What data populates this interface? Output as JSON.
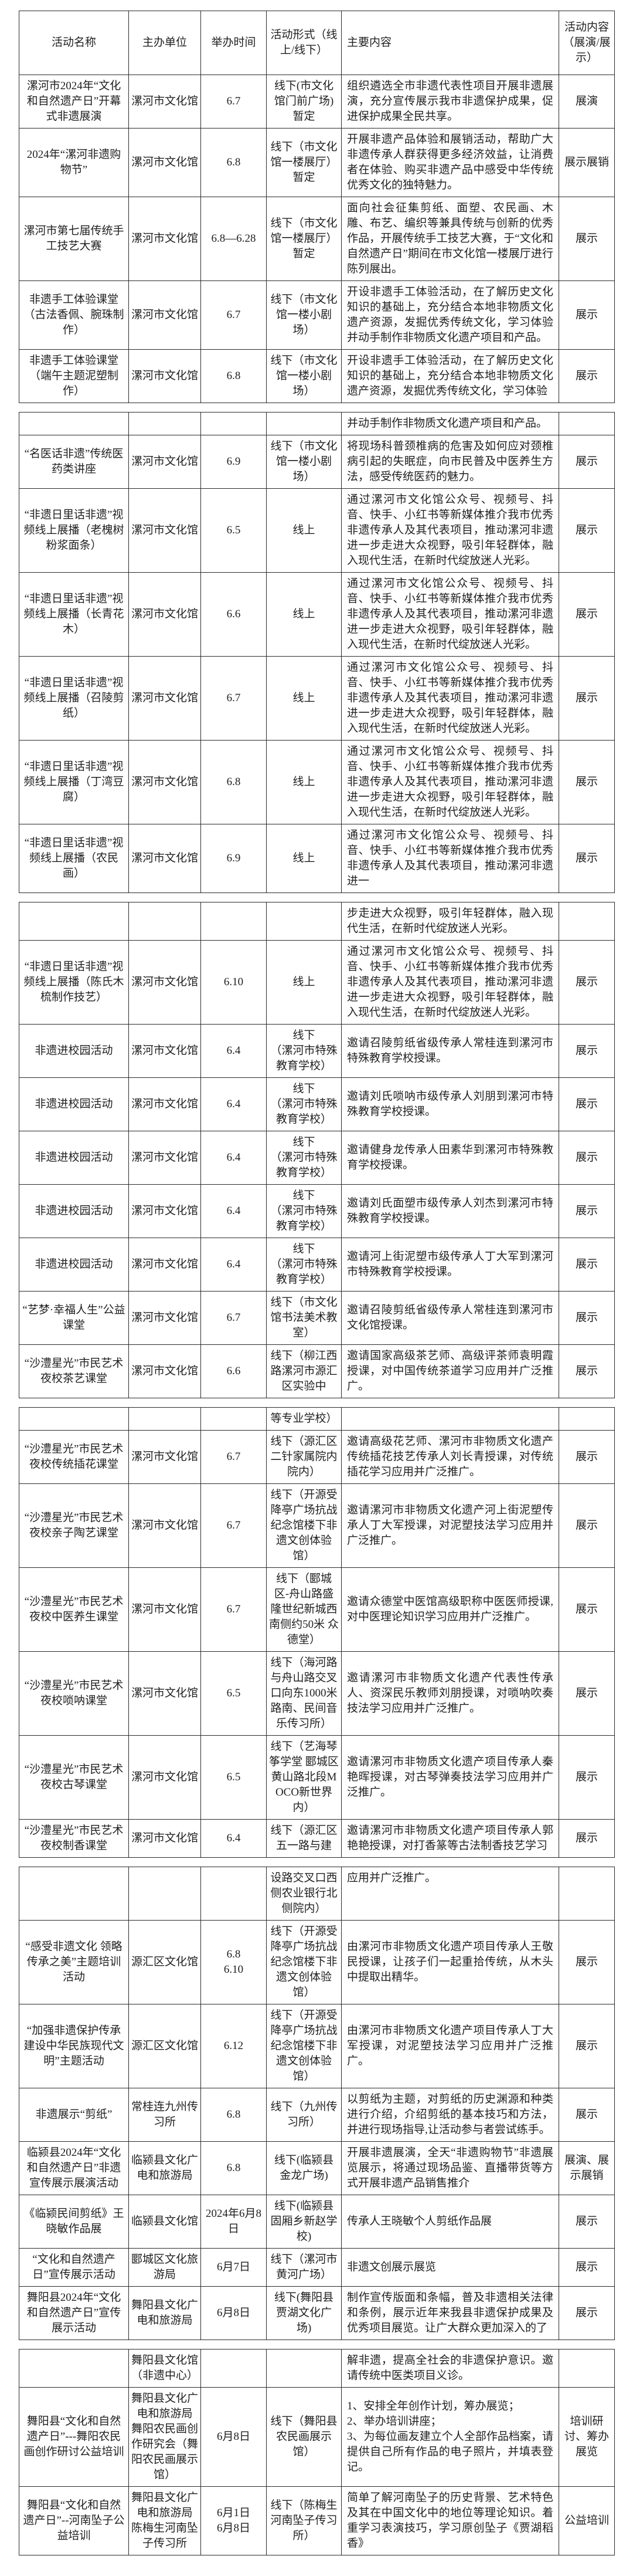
{
  "document": {
    "background_color": "#ffffff",
    "text_color": "#1f1f1f",
    "border_color": "#2b2b2b",
    "description": "漯河市2024年文化和自然遗产日非遗宣传展示活动安排表"
  },
  "header": {
    "columns": [
      "活动名称",
      "主办单位",
      "举办时间",
      "活动形式（线上/线下）",
      "主要内容",
      "活动内容（展演/展示）"
    ]
  },
  "pages": [
    {
      "rows": [
        {
          "continuation": false,
          "name": "漯河市2024年“文化和自然遗产日”开幕式非遗展演",
          "org": "漯河市文化馆",
          "time": "6.7",
          "format": "线下(市文化馆门前广场)暂定",
          "content": "组织遴选全市非遗代表性项目开展非遗展演，充分宣传展示我市非遗保护成果，促进保护成果全民共享。",
          "type": "展演"
        },
        {
          "continuation": false,
          "name": "2024年“漯河非遗购物节”",
          "org": "漯河市文化馆",
          "time": "6.8",
          "format": "线下（市文化馆一楼展厅）暂定",
          "content": "开展非遗产品体验和展销活动，帮助广大非遗传承人群获得更多经济效益，让消费者在体验、购买非遗产品中感受中华传统优秀文化的独特魅力。",
          "type": "展示展销"
        },
        {
          "continuation": false,
          "name": "漯河市第七届传统手工技艺大赛",
          "org": "漯河市文化馆",
          "time": "6.8—6.28",
          "format": "线下（市文化馆一楼展厅）暂定",
          "content": "面向社会征集剪纸、面塑、农民画、木雕、布艺、编织等兼具传统与创新的优秀作品，开展传统手工技艺大赛，于“文化和自然遗产日”期间在市文化馆一楼展厅进行陈列展出。",
          "type": "展示"
        },
        {
          "continuation": false,
          "name": "非遗手工体验课堂（古法香佩、腕珠制作）",
          "org": "漯河市文化馆",
          "time": "6.7",
          "format": "线下（市文化馆一楼小剧场）",
          "content": "开设非遗手工体验活动，在了解历史文化知识的基础上，充分结合本地非物质文化遗产资源，发掘优秀传统文化，学习体验并动手制作非物质文化遗产项目和产品。",
          "type": "展示"
        },
        {
          "continuation": false,
          "name": "非遗手工体验课堂（端午主题泥塑制作）",
          "org": "漯河市文化馆",
          "time": "6.8",
          "format": "线下（市文化馆一楼小剧场）",
          "content": "开设非遗手工体验活动，在了解历史文化知识的基础上，充分结合本地非物质文化遗产资源，发掘优秀传统文化，学习体验",
          "type": "展示"
        }
      ]
    },
    {
      "rows": [
        {
          "continuation": true,
          "name": "",
          "org": "",
          "time": "",
          "format": "",
          "content": "并动手制作非物质文化遗产项目和产品。",
          "type": ""
        },
        {
          "continuation": false,
          "name": "“名医话非遗”传统医药类讲座",
          "org": "漯河市文化馆",
          "time": "6.9",
          "format": "线下（市文化馆一楼小剧场）",
          "content": "将现场科普颈椎病的危害及如何应对颈椎病引起的失眠症，向市民普及中医养生方法，感受传统医药的魅力。",
          "type": "展示"
        },
        {
          "continuation": false,
          "name": "“非遗日里话非遗”视频线上展播（老槐树粉浆面条）",
          "org": "漯河市文化馆",
          "time": "6.5",
          "format": "线上",
          "content": "通过漯河市文化馆公众号、视频号、抖音、快手、小红书等新媒体推介我市优秀非遗传承人及其代表项目，推动漯河非遗进一步走进大众视野，吸引年轻群体，融入现代生活，在新时代绽放迷人光彩。",
          "type": "展示"
        },
        {
          "continuation": false,
          "name": "“非遗日里话非遗”视频线上展播（长青花木）",
          "org": "漯河市文化馆",
          "time": "6.6",
          "format": "线上",
          "content": "通过漯河市文化馆公众号、视频号、抖音、快手、小红书等新媒体推介我市优秀非遗传承人及其代表项目，推动漯河非遗进一步走进大众视野，吸引年轻群体，融入现代生活，在新时代绽放迷人光彩。",
          "type": "展示"
        },
        {
          "continuation": false,
          "name": "“非遗日里话非遗”视频线上展播（召陵剪纸）",
          "org": "漯河市文化馆",
          "time": "6.7",
          "format": "线上",
          "content": "通过漯河市文化馆公众号、视频号、抖音、快手、小红书等新媒体推介我市优秀非遗传承人及其代表项目，推动漯河非遗进一步走进大众视野，吸引年轻群体，融入现代生活，在新时代绽放迷人光彩。",
          "type": "展示"
        },
        {
          "continuation": false,
          "name": "“非遗日里话非遗”视频线上展播（丁湾豆腐）",
          "org": "漯河市文化馆",
          "time": "6.8",
          "format": "线上",
          "content": "通过漯河市文化馆公众号、视频号、抖音、快手、小红书等新媒体推介我市优秀非遗传承人及其代表项目，推动漯河非遗进一步走进大众视野，吸引年轻群体，融入现代生活，在新时代绽放迷人光彩。",
          "type": "展示"
        },
        {
          "continuation": false,
          "name": "“非遗日里话非遗”视频线上展播（农民画）",
          "org": "漯河市文化馆",
          "time": "6.9",
          "format": "线上",
          "content": "通过漯河市文化馆公众号、视频号、抖音、快手、小红书等新媒体推介我市优秀非遗传承人及其代表项目，推动漯河非遗进一",
          "type": "展示"
        }
      ]
    },
    {
      "rows": [
        {
          "continuation": true,
          "name": "",
          "org": "",
          "time": "",
          "format": "",
          "content": "步走进大众视野，吸引年轻群体，融入现代生活，在新时代绽放迷人光彩。",
          "type": ""
        },
        {
          "continuation": false,
          "name": "“非遗日里话非遗”视频线上展播（陈氏木梳制作技艺）",
          "org": "漯河市文化馆",
          "time": "6.10",
          "format": "线上",
          "content": "通过漯河市文化馆公众号、视频号、抖音、快手、小红书等新媒体推介我市优秀非遗传承人及其代表项目，推动漯河非遗进一步走进大众视野，吸引年轻群体，融入现代生活，在新时代绽放迷人光彩。",
          "type": "展示"
        },
        {
          "continuation": false,
          "name": "非遗进校园活动",
          "org": "漯河市文化馆",
          "time": "6.4",
          "format": "线下\n（漯河市特殊教育学校）",
          "content": "邀请召陵剪纸省级传承人常桂连到漯河市特殊教育学校授课。",
          "type": "展示"
        },
        {
          "continuation": false,
          "name": "非遗进校园活动",
          "org": "漯河市文化馆",
          "time": "6.4",
          "format": "线下\n（漯河市特殊教育学校）",
          "content": "邀请刘氏唢呐市级传承人刘朋到漯河市特殊教育学校授课。",
          "type": "展示"
        },
        {
          "continuation": false,
          "name": "非遗进校园活动",
          "org": "漯河市文化馆",
          "time": "6.4",
          "format": "线下\n（漯河市特殊教育学校）",
          "content": "邀请健身龙传承人田素华到漯河市特殊教育学校授课。",
          "type": "展示"
        },
        {
          "continuation": false,
          "name": "非遗进校园活动",
          "org": "漯河市文化馆",
          "time": "6.4",
          "format": "线下\n（漯河市特殊教育学校）",
          "content": "邀请刘氏面塑市级传承人刘杰到漯河市特殊教育学校授课。",
          "type": "展示"
        },
        {
          "continuation": false,
          "name": "非遗进校园活动",
          "org": "漯河市文化馆",
          "time": "6.4",
          "format": "线下\n（漯河市特殊教育学校）",
          "content": "邀请河上街泥塑市级传承人丁大军到漯河市特殊教育学校授课。",
          "type": "展示"
        },
        {
          "continuation": false,
          "name": "“艺梦·幸福人生”公益课堂",
          "org": "漯河市文化馆",
          "time": "6.7",
          "format": "线下（市文化馆书法美术教室）",
          "content": "邀请召陵剪纸省级传承人常桂连到漯河市文化馆授课。",
          "type": "展示"
        },
        {
          "continuation": false,
          "name": "“沙澧星光”市民艺术夜校茶艺课堂",
          "org": "漯河市文化馆",
          "time": "6.6",
          "format": "线下（柳江西路漯河市源汇区实验中",
          "content": "邀请国家高级茶艺师、高级评茶师袁明霞授课，对中国传统茶道学习应用并广泛推广。",
          "type": "展示"
        }
      ]
    },
    {
      "rows": [
        {
          "continuation": true,
          "name": "",
          "org": "",
          "time": "",
          "format": "等专业学校）",
          "content": "",
          "type": ""
        },
        {
          "continuation": false,
          "name": "“沙澧星光”市民艺术夜校传统插花课堂",
          "org": "漯河市文化馆",
          "time": "6.7",
          "format": "线下（源汇区二针家属院内院内）",
          "content": "邀请高级花艺师、漯河市非物质文化遗产传统插花技艺传承人刘长青授课，对传统插花学习应用并广泛推广。",
          "type": "展示"
        },
        {
          "continuation": false,
          "name": "“沙澧星光”市民艺术夜校亲子陶艺课堂",
          "org": "漯河市文化馆",
          "time": "6.7",
          "format": "线下（开源受降亭广场抗战纪念馆楼下非遗文创体验馆）",
          "content": "邀请漯河市非物质文化遗产河上街泥塑传承人丁大军授课，对泥塑技法学习应用并广泛推广。",
          "type": "展示"
        },
        {
          "continuation": false,
          "name": "“沙澧星光”市民艺术夜校中医养生课堂",
          "org": "漯河市文化馆",
          "time": "6.7",
          "format": "线下（郾城区-舟山路盛隆世纪新城西南侧约50米 众德堂）",
          "content": "邀请众德堂中医馆高级职称中医医师授课,对中医理论知识学习应用并广泛推广。",
          "type": "展示"
        },
        {
          "continuation": false,
          "name": "“沙澧星光”市民艺术夜校唢呐课堂",
          "org": "漯河市文化馆",
          "time": "6.5",
          "format": "线下（海河路与舟山路交叉口向东1000米路南、民间音乐传习所）",
          "content": "邀请漯河市非物质文化遗产代表性传承人、资深民乐教师刘朋授课，对唢呐吹奏技法学习应用并广泛推广。",
          "type": "展示"
        },
        {
          "continuation": false,
          "name": "“沙澧星光”市民艺术夜校古琴课堂",
          "org": "漯河市文化馆",
          "time": "6.5",
          "format": "线下（艺海琴筝学堂 郾城区黄山路北段MOCO新世界内）",
          "content": "邀请漯河市非物质文化遗产项目传承人秦艳晖授课，对古琴弹奏技法学习应用并广泛推广。",
          "type": "展示"
        },
        {
          "continuation": false,
          "name": "“沙澧星光”市民艺术夜校制香课堂",
          "org": "漯河市文化馆",
          "time": "6.4",
          "format": "线下（源汇区五一路与建",
          "content": "邀请漯河市非物质文化遗产项目传承人郭艳艳授课，对打香篆等古法制香技艺学习",
          "type": "展示"
        }
      ]
    },
    {
      "rows": [
        {
          "continuation": true,
          "name": "",
          "org": "",
          "time": "",
          "format": "设路交叉口西侧农业银行北侧院内）",
          "content": "应用并广泛推广。",
          "type": ""
        },
        {
          "continuation": false,
          "name": "“感受非遗文化 领略传承之美”主题培训活动",
          "org": "源汇区文化馆",
          "time": "6.8\n6.10",
          "format": "线下（开源受降亭广场抗战纪念馆楼下非遗文创体验馆）",
          "content": "由漯河市非物质文化遗产项目传承人王敬民授课，让孩子们一起重拾传统，从木头中提取出精华。",
          "type": "展示"
        },
        {
          "continuation": false,
          "name": "“加强非遗保护传承 建设中华民族现代文明”主题活动",
          "org": "源汇区文化馆",
          "time": "6.12",
          "format": "线下（开源受降亭广场抗战纪念馆楼下非遗文创体验馆）",
          "content": "由漯河市非物质文化遗产项目传承人丁大军授课，对泥塑技法学习应用并广泛推广。",
          "type": "展示"
        },
        {
          "continuation": false,
          "name": "非遗展示“剪纸”",
          "org": "常桂连九州传习所",
          "time": "6.8",
          "format": "线下（九州传习所）",
          "content": "以剪纸为主题，对剪纸的历史渊源和种类进行介绍，介绍剪纸的基本技巧和方法，并进行现场指导,让活动参与者尝试练手。",
          "type": "展示"
        },
        {
          "continuation": false,
          "name": "临颍县2024年“文化和自然遗产日”非遗宣传展示展演活动",
          "org": "临颍县文化广电和旅游局",
          "time": "6.8",
          "format": "线下(临颍县金龙广场)",
          "content": "开展非遗展演，全天“非遗购物节”非遗展览展示，将通过现场品鉴、直播带货等方式开展非遗产品销售推介",
          "type": "展演、展示展销"
        },
        {
          "continuation": false,
          "name": "《临颍民间剪纸》王晓敏作品展",
          "org": "临颍县文化馆",
          "time": "2024年6月8日",
          "format": "线下(临颍县固厢乡新赵学校)",
          "content": "传承人王晓敏个人剪纸作品展",
          "type": "展示"
        },
        {
          "continuation": false,
          "name": "“文化和自然遗产日”宣传展示活动",
          "org": "郾城区文化旅游局",
          "time": "6月7日",
          "format": "线下（漯河市黄河广场）",
          "content": "非遗文创展示展览",
          "type": "展示"
        },
        {
          "continuation": false,
          "name": "舞阳县2024年“文化和自然遗产日”宣传展示活动",
          "org": "舞阳县文化广电和旅游局",
          "time": "6月8日",
          "format": "线下(舞阳县贾湖文化广场)",
          "content": "制作宣传版面和条幅，普及非遗相关法律和条例，展示近年来我县非遗保护成果及优秀项目展览。让广大群众更加深入的了",
          "type": "展示"
        }
      ]
    },
    {
      "rows": [
        {
          "continuation": true,
          "name": "",
          "org": "舞阳县文化馆（非遗中心）",
          "time": "",
          "format": "",
          "content": "解非遗，提高全社会的非遗保护意识。邀请传统中医类项目义诊。",
          "type": ""
        },
        {
          "continuation": false,
          "name": "舞阳县“文化和自然遗产日”---舞阳农民画创作研讨公益培训",
          "org": "舞阳县文化广电和旅游局\n舞阳农民画创作研究会（舞阳农民画展示馆）",
          "time": "6月8日",
          "format": "线下（舞阳县农民画展示馆）",
          "content": "1、安排全年创作计划，筹办展览；\n2、举办培训讲座；\n3、为每位画友建立个人全部作品档案，请提供自己所有作品的电子照片，并填表登记。",
          "type": "培训研讨、筹办展览"
        },
        {
          "continuation": false,
          "name": "舞阳县“文化和自然遗产日”--河南坠子公益培训",
          "org": "舞阳县文化广电和旅游局\n陈梅生河南坠子传习所",
          "time": "6月1日\n6月8日",
          "format": "线下（陈梅生河南坠子传习所）",
          "content": "简单了解河南坠子的历史背景、艺术特色及其在中国文化中的地位等理论知识。着重学习表演技巧，学习原创坠子《贾湖稻香》",
          "type": "公益培训"
        }
      ]
    }
  ]
}
